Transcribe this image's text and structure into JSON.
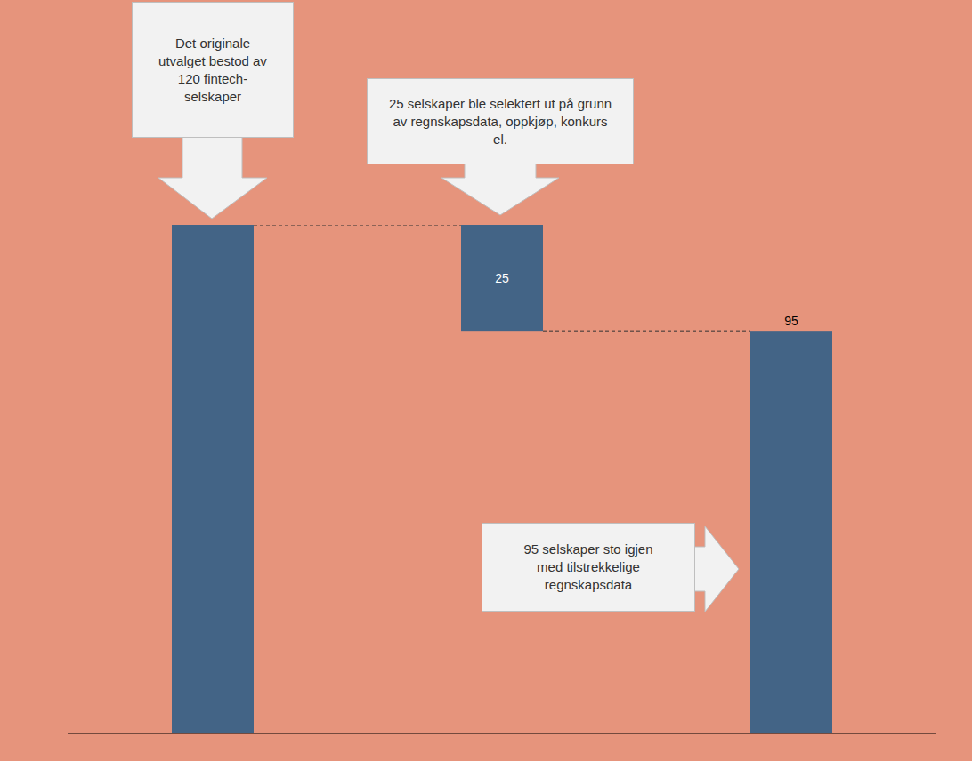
{
  "chart_data": {
    "type": "waterfall",
    "categories": [
      null,
      null,
      null
    ],
    "values": [
      120,
      25,
      95
    ],
    "color": "#436486",
    "ylim": [
      0,
      120
    ],
    "data_labels": true,
    "tick_labels": false,
    "annotations": [
      "Det originale utvalget bestod av 120 fintech-selskaper",
      "25 selskaper ble selektert ut på grunn av regnskapsdata, oppkjøp, konkurs el.",
      "95 selskaper sto igjen med tilstrekkelige regnskapsdata"
    ]
  }
}
